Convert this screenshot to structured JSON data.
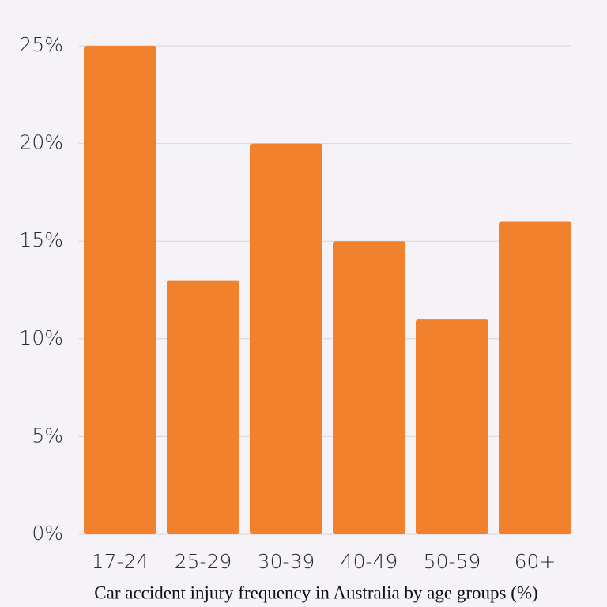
{
  "chart_data": {
    "type": "bar",
    "x_title": "Car accident injury frequency in Australia by age groups (%)",
    "categories": [
      "17-24",
      "25-29",
      "30-39",
      "40-49",
      "50-59",
      "60+"
    ],
    "values": [
      25,
      13,
      20,
      15,
      11,
      16
    ],
    "color": "#f2812e",
    "ylim": [
      0,
      25
    ],
    "yticks": [
      {
        "value": 0,
        "label": "0%"
      },
      {
        "value": 5,
        "label": "5%"
      },
      {
        "value": 10,
        "label": "10%"
      },
      {
        "value": 15,
        "label": "15%"
      },
      {
        "value": 20,
        "label": "20%"
      },
      {
        "value": 25,
        "label": "25%"
      }
    ],
    "grid": true
  }
}
